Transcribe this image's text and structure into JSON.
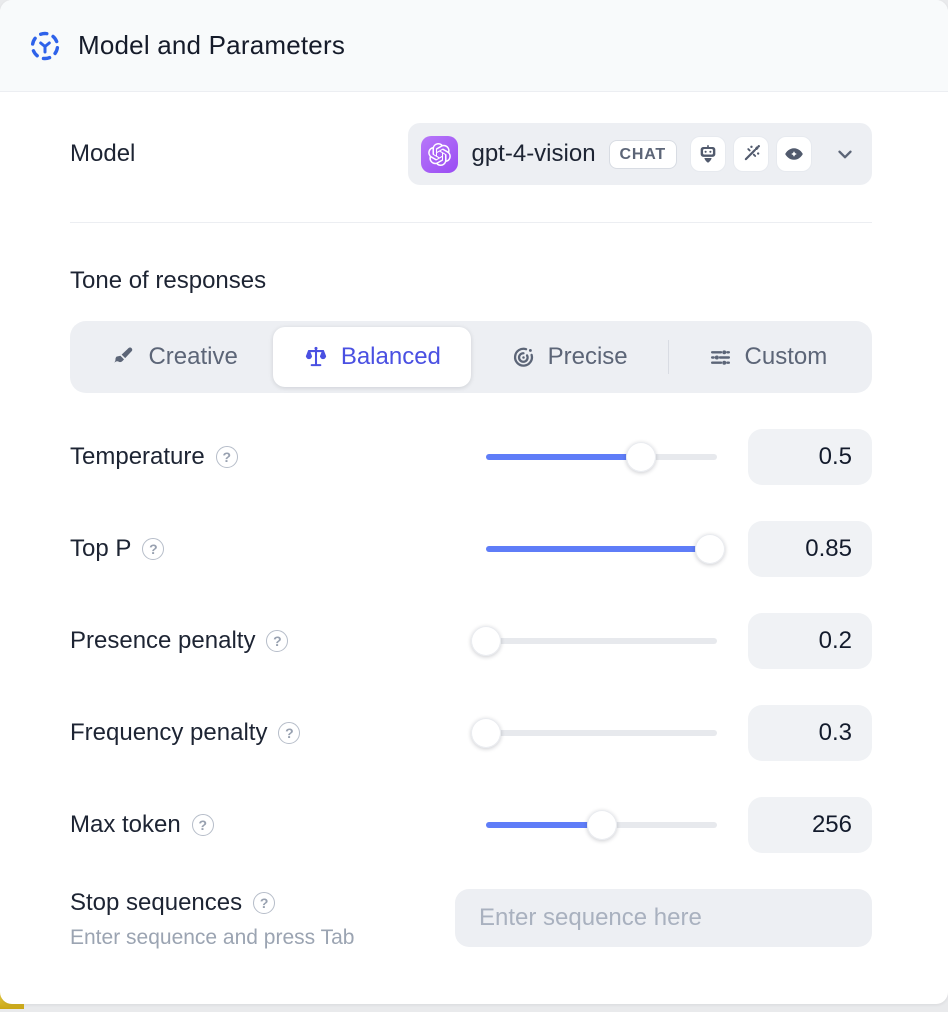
{
  "header": {
    "title": "Model and Parameters"
  },
  "model": {
    "label": "Model",
    "name": "gpt-4-vision",
    "type_badge": "CHAT",
    "capability_icons": [
      "chatbot-icon",
      "magic-wand-icon",
      "vision-icon"
    ]
  },
  "tone": {
    "heading": "Tone of responses",
    "tabs": [
      {
        "label": "Creative",
        "icon": "paintbrush-icon",
        "active": false
      },
      {
        "label": "Balanced",
        "icon": "balance-scale-icon",
        "active": true
      },
      {
        "label": "Precise",
        "icon": "target-icon",
        "active": false
      },
      {
        "label": "Custom",
        "icon": "sliders-icon",
        "active": false
      }
    ]
  },
  "parameters": [
    {
      "label": "Temperature",
      "value": "0.5",
      "fill_pct": 67
    },
    {
      "label": "Top P",
      "value": "0.85",
      "fill_pct": 97
    },
    {
      "label": "Presence penalty",
      "value": "0.2",
      "fill_pct": 0
    },
    {
      "label": "Frequency penalty",
      "value": "0.3",
      "fill_pct": 0
    },
    {
      "label": "Max token",
      "value": "256",
      "fill_pct": 50
    }
  ],
  "stop_sequences": {
    "label": "Stop sequences",
    "hint": "Enter sequence and press Tab",
    "placeholder": "Enter sequence here"
  },
  "colors": {
    "accent_blue": "#2e62ea",
    "active_tab_text": "#4a50e2",
    "slider_fill": "#5f7df8",
    "panel_gray": "#edeff3",
    "text_dark": "#1d2433",
    "text_gray": "#5c6577",
    "logo_purple": "#9a4cf3"
  }
}
